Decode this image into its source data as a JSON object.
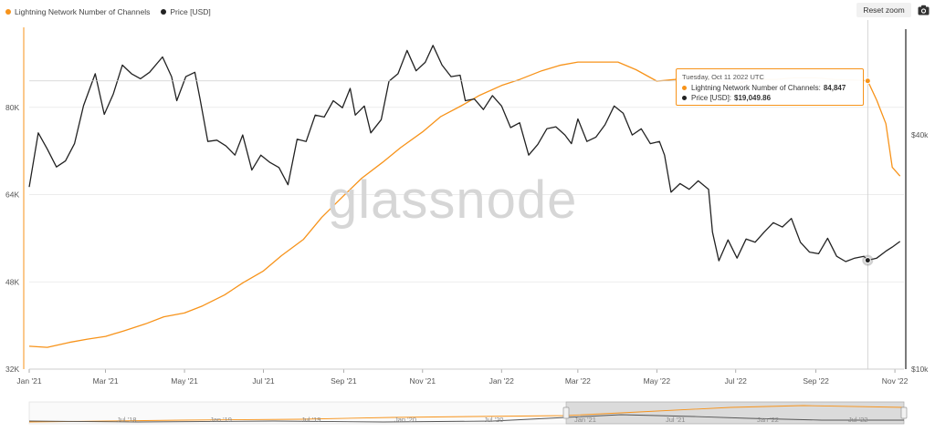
{
  "legend": {
    "series1_label": "Lightning Network Number of Channels",
    "series2_label": "Price [USD]"
  },
  "toolbar": {
    "reset_zoom_label": "Reset zoom",
    "camera_icon": "camera-icon"
  },
  "watermark": "glassnode",
  "colors": {
    "channels": "#f7931a",
    "price": "#222222",
    "grid": "#e6e6e6",
    "axis": "#333333"
  },
  "tooltip": {
    "date": "Tuesday, Oct 11 2022 UTC",
    "channels_label": "Lightning Network Number of Channels:",
    "channels_value": "84,847",
    "price_label": "Price [USD]:",
    "price_value": "$19,049.86"
  },
  "chart_data": {
    "type": "line",
    "x_ticks": [
      "Jan '21",
      "Mar '21",
      "May '21",
      "Jul '21",
      "Sep '21",
      "Nov '21",
      "Jan '22",
      "Mar '22",
      "May '22",
      "Jul '22",
      "Sep '22",
      "Nov '22"
    ],
    "x_tick_dates": [
      "2021-01-01",
      "2021-03-01",
      "2021-05-01",
      "2021-07-01",
      "2021-09-01",
      "2021-11-01",
      "2022-01-01",
      "2022-03-01",
      "2022-05-01",
      "2022-07-01",
      "2022-09-01",
      "2022-11-01"
    ],
    "x_range": [
      "2021-01-01",
      "2022-11-08"
    ],
    "left_axis": {
      "ticks": [
        "32K",
        "48K",
        "64K",
        "80K"
      ],
      "range": [
        32000,
        96000
      ]
    },
    "right_axis": {
      "ticks": [
        "$10k",
        "$40k"
      ],
      "scale": "log",
      "range": [
        10000,
        79000
      ]
    },
    "grid": true,
    "legend_position": "top-left",
    "series": [
      {
        "name": "Lightning Network Number of Channels",
        "axis": "left",
        "points": [
          [
            "2021-01-01",
            36200
          ],
          [
            "2021-01-15",
            36000
          ],
          [
            "2021-02-01",
            36900
          ],
          [
            "2021-02-15",
            37500
          ],
          [
            "2021-03-01",
            38000
          ],
          [
            "2021-03-15",
            39000
          ],
          [
            "2021-04-01",
            40300
          ],
          [
            "2021-04-15",
            41600
          ],
          [
            "2021-05-01",
            42300
          ],
          [
            "2021-05-15",
            43600
          ],
          [
            "2021-06-01",
            45600
          ],
          [
            "2021-06-15",
            47800
          ],
          [
            "2021-07-01",
            50000
          ],
          [
            "2021-07-15",
            52800
          ],
          [
            "2021-08-01",
            55800
          ],
          [
            "2021-08-15",
            59800
          ],
          [
            "2021-09-01",
            63800
          ],
          [
            "2021-09-15",
            67000
          ],
          [
            "2021-10-01",
            69900
          ],
          [
            "2021-10-15",
            72600
          ],
          [
            "2021-11-01",
            75500
          ],
          [
            "2021-11-15",
            78300
          ],
          [
            "2021-12-01",
            80300
          ],
          [
            "2021-12-15",
            82200
          ],
          [
            "2022-01-01",
            84000
          ],
          [
            "2022-01-15",
            85100
          ],
          [
            "2022-02-01",
            86700
          ],
          [
            "2022-02-15",
            87700
          ],
          [
            "2022-03-01",
            88300
          ],
          [
            "2022-03-15",
            88300
          ],
          [
            "2022-04-01",
            88300
          ],
          [
            "2022-04-15",
            86900
          ],
          [
            "2022-05-01",
            84800
          ],
          [
            "2022-05-15",
            85100
          ],
          [
            "2022-06-01",
            85700
          ],
          [
            "2022-06-15",
            85000
          ],
          [
            "2022-07-01",
            84300
          ],
          [
            "2022-07-15",
            85100
          ],
          [
            "2022-08-01",
            85100
          ],
          [
            "2022-08-15",
            85400
          ],
          [
            "2022-09-01",
            85400
          ],
          [
            "2022-09-15",
            85100
          ],
          [
            "2022-10-01",
            85000
          ],
          [
            "2022-10-11",
            84847
          ],
          [
            "2022-10-18",
            81300
          ],
          [
            "2022-10-25",
            77000
          ],
          [
            "2022-10-30",
            69000
          ],
          [
            "2022-11-05",
            67400
          ]
        ]
      },
      {
        "name": "Price [USD]",
        "axis": "right",
        "points": [
          [
            "2021-01-01",
            29400
          ],
          [
            "2021-01-08",
            40500
          ],
          [
            "2021-01-15",
            36800
          ],
          [
            "2021-01-22",
            33100
          ],
          [
            "2021-01-29",
            34300
          ],
          [
            "2021-02-05",
            38000
          ],
          [
            "2021-02-12",
            47600
          ],
          [
            "2021-02-21",
            57500
          ],
          [
            "2021-02-28",
            45200
          ],
          [
            "2021-03-07",
            51000
          ],
          [
            "2021-03-14",
            60500
          ],
          [
            "2021-03-21",
            57500
          ],
          [
            "2021-03-28",
            55800
          ],
          [
            "2021-04-04",
            58000
          ],
          [
            "2021-04-14",
            63500
          ],
          [
            "2021-04-21",
            56500
          ],
          [
            "2021-04-25",
            49000
          ],
          [
            "2021-05-02",
            56500
          ],
          [
            "2021-05-09",
            58000
          ],
          [
            "2021-05-13",
            49500
          ],
          [
            "2021-05-19",
            38500
          ],
          [
            "2021-05-26",
            38800
          ],
          [
            "2021-06-02",
            37500
          ],
          [
            "2021-06-09",
            35500
          ],
          [
            "2021-06-15",
            40000
          ],
          [
            "2021-06-22",
            32500
          ],
          [
            "2021-06-29",
            35500
          ],
          [
            "2021-07-06",
            34000
          ],
          [
            "2021-07-13",
            33000
          ],
          [
            "2021-07-20",
            29800
          ],
          [
            "2021-07-27",
            39000
          ],
          [
            "2021-08-03",
            38500
          ],
          [
            "2021-08-10",
            45000
          ],
          [
            "2021-08-17",
            44500
          ],
          [
            "2021-08-24",
            49000
          ],
          [
            "2021-08-31",
            47000
          ],
          [
            "2021-09-06",
            52700
          ],
          [
            "2021-09-10",
            45000
          ],
          [
            "2021-09-17",
            47500
          ],
          [
            "2021-09-22",
            40500
          ],
          [
            "2021-09-30",
            43800
          ],
          [
            "2021-10-06",
            55000
          ],
          [
            "2021-10-13",
            57500
          ],
          [
            "2021-10-20",
            66000
          ],
          [
            "2021-10-27",
            58500
          ],
          [
            "2021-11-03",
            61500
          ],
          [
            "2021-11-09",
            68000
          ],
          [
            "2021-11-16",
            60500
          ],
          [
            "2021-11-23",
            56500
          ],
          [
            "2021-11-30",
            57000
          ],
          [
            "2021-12-04",
            49000
          ],
          [
            "2021-12-11",
            49500
          ],
          [
            "2021-12-18",
            46500
          ],
          [
            "2021-12-25",
            50500
          ],
          [
            "2022-01-01",
            47500
          ],
          [
            "2022-01-08",
            41800
          ],
          [
            "2022-01-15",
            43000
          ],
          [
            "2022-01-22",
            35500
          ],
          [
            "2022-01-29",
            37800
          ],
          [
            "2022-02-05",
            41500
          ],
          [
            "2022-02-12",
            42000
          ],
          [
            "2022-02-19",
            40000
          ],
          [
            "2022-02-24",
            38000
          ],
          [
            "2022-03-01",
            44000
          ],
          [
            "2022-03-08",
            38500
          ],
          [
            "2022-03-15",
            39500
          ],
          [
            "2022-03-22",
            42500
          ],
          [
            "2022-03-29",
            47500
          ],
          [
            "2022-04-05",
            45500
          ],
          [
            "2022-04-12",
            40000
          ],
          [
            "2022-04-19",
            41500
          ],
          [
            "2022-04-26",
            38000
          ],
          [
            "2022-05-03",
            38500
          ],
          [
            "2022-05-07",
            35500
          ],
          [
            "2022-05-12",
            28500
          ],
          [
            "2022-05-19",
            30000
          ],
          [
            "2022-05-26",
            29000
          ],
          [
            "2022-06-02",
            30500
          ],
          [
            "2022-06-10",
            29000
          ],
          [
            "2022-06-13",
            22500
          ],
          [
            "2022-06-18",
            19000
          ],
          [
            "2022-06-25",
            21500
          ],
          [
            "2022-07-02",
            19300
          ],
          [
            "2022-07-09",
            21600
          ],
          [
            "2022-07-16",
            21200
          ],
          [
            "2022-07-23",
            22500
          ],
          [
            "2022-07-30",
            23800
          ],
          [
            "2022-08-06",
            23200
          ],
          [
            "2022-08-13",
            24400
          ],
          [
            "2022-08-20",
            21200
          ],
          [
            "2022-08-27",
            20000
          ],
          [
            "2022-09-03",
            19800
          ],
          [
            "2022-09-10",
            21700
          ],
          [
            "2022-09-17",
            19500
          ],
          [
            "2022-09-24",
            18900
          ],
          [
            "2022-10-01",
            19300
          ],
          [
            "2022-10-08",
            19500
          ],
          [
            "2022-10-11",
            19049.86
          ],
          [
            "2022-10-18",
            19300
          ],
          [
            "2022-10-25",
            20100
          ],
          [
            "2022-10-30",
            20600
          ],
          [
            "2022-11-05",
            21300
          ]
        ]
      }
    ],
    "navigator_labels": [
      "Jul '18",
      "Jan '19",
      "Jul '19",
      "Jan '20",
      "Jul '20",
      "Jan '21",
      "Jul '21",
      "Jan '22",
      "Jul '22"
    ]
  }
}
